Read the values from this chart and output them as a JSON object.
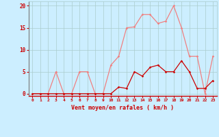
{
  "x": [
    0,
    1,
    2,
    3,
    4,
    5,
    6,
    7,
    8,
    9,
    10,
    11,
    12,
    13,
    14,
    15,
    16,
    17,
    18,
    19,
    20,
    21,
    22,
    23
  ],
  "rafales": [
    0,
    0,
    0,
    5,
    0,
    0,
    5,
    5,
    0,
    0,
    6.5,
    8.5,
    15,
    15.2,
    18,
    18,
    16,
    16.5,
    20,
    15,
    8.5,
    8.5,
    0,
    8.5
  ],
  "moyen": [
    0,
    0,
    0,
    0,
    0,
    0,
    0,
    0,
    0,
    0,
    0,
    1.5,
    1.2,
    5,
    4,
    6,
    6.5,
    5,
    5,
    7.5,
    5,
    1.2,
    1.2,
    3
  ],
  "color_rafales": "#f08080",
  "color_moyen": "#cc0000",
  "bg_color": "#cceeff",
  "grid_color": "#aacccc",
  "xlabel": "Vent moyen/en rafales ( km/h )",
  "ylabel_ticks": [
    0,
    5,
    10,
    15,
    20
  ],
  "xlim": [
    -0.5,
    23.5
  ],
  "ylim": [
    -0.5,
    21
  ],
  "xlabel_color": "#cc0000",
  "tick_color": "#cc0000"
}
